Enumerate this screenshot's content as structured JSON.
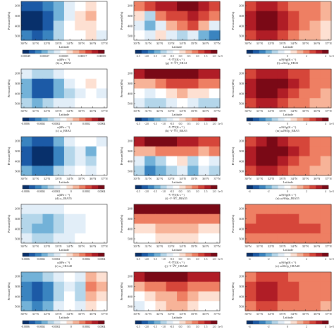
{
  "figure": {
    "columns": [
      {
        "xlabel": "Latitude",
        "ylabel": "Pressure(hPa)",
        "x_ticks": [
          "30°N",
          "31°N",
          "32°N",
          "33°N",
          "34°N",
          "35°N",
          "36°N",
          "37°N"
        ],
        "y_ticks": [
          "200",
          "300",
          "400",
          "500"
        ]
      },
      {
        "xlabel": "Latitude",
        "ylabel": "Pressure(hPa)",
        "x_ticks": [
          "30°N",
          "31°N",
          "32°N",
          "33°N",
          "34°N",
          "35°N",
          "36°N",
          "37°N"
        ],
        "y_ticks": [
          "200",
          "300",
          "400",
          "500"
        ]
      },
      {
        "xlabel": "Latitude",
        "ylabel": "Pressure(hPa)",
        "x_ticks": [
          "30°N",
          "31°N",
          "32°N",
          "33°N",
          "34°N",
          "35°N",
          "36°N",
          "37°N"
        ],
        "y_ticks": [
          "200",
          "300",
          "400",
          "500"
        ]
      }
    ],
    "rows": [
      {
        "colorbars": [
          {
            "ticks": [
              "-0.00049",
              "-0.00027",
              "-0.00005",
              "0.00017",
              "0.00039"
            ],
            "exp": "",
            "label": "ω(hPa·s⁻¹)",
            "caption": "(b) ω_ERAI"
          },
          {
            "ticks": [
              "-2.5",
              "-2.0",
              "-1.5",
              "-1.0",
              "-0.5",
              "0.0",
              "0.5",
              "1.0",
              "1.5",
              "2.0"
            ],
            "exp": "1e-5",
            "label": "-V·∇T(K·s⁻¹)",
            "caption": "(g) -V·∇T_ERAI"
          },
          {
            "ticks": [
              "-4",
              "-2",
              "0",
              "2",
              "4"
            ],
            "exp": "1e-5",
            "label": "ω∂θ/∂p(K·s⁻¹)",
            "caption": "(l) ω∂θ/∂p_ERAI"
          }
        ]
      },
      {
        "colorbars": [
          {
            "ticks": [
              "-0.0006",
              "-0.0004",
              "-0.0002",
              "0",
              "0.0002",
              "0.0004"
            ],
            "exp": "",
            "label": "ω(hPa·s⁻¹)",
            "caption": "(c) ω_ERA5"
          },
          {
            "ticks": [
              "-2.5",
              "-2.0",
              "-1.5",
              "-1.0",
              "-0.5",
              "0.0",
              "0.5",
              "1.0",
              "1.5",
              "2.0"
            ],
            "exp": "1e-5",
            "label": "-V·∇T(K·s⁻¹)",
            "caption": "(h) -V·∇T_ERA5"
          },
          {
            "ticks": [
              "-4",
              "-2",
              "0",
              "2",
              "4"
            ],
            "exp": "1e-5",
            "label": "ω∂θ/∂p(K·s⁻¹)",
            "caption": "(m) ω∂θ/∂p_ERA5"
          }
        ]
      },
      {
        "colorbars": [
          {
            "ticks": [
              "-0.0006",
              "-0.0004",
              "-0.0002",
              "0",
              "0.0002",
              "0.0004"
            ],
            "exp": "",
            "label": "ω(hPa·s⁻¹)",
            "caption": "(d) ω_JRA55"
          },
          {
            "ticks": [
              "-2.5",
              "-2.0",
              "-1.5",
              "-1.0",
              "-0.5",
              "0.0",
              "0.5",
              "1.0",
              "1.5",
              "2.0"
            ],
            "exp": "1e-5",
            "label": "-V·∇T(K·s⁻¹)",
            "caption": "(i) -V·∇T_JRA55"
          },
          {
            "ticks": [
              "-4",
              "-2",
              "0",
              "2",
              "4"
            ],
            "exp": "1e-5",
            "label": "ω∂θ/∂p(K·s⁻¹)",
            "caption": "(n) ω∂θ/∂p_JRA55"
          }
        ]
      },
      {
        "colorbars": [
          {
            "ticks": [
              "-0.0006",
              "-0.0004",
              "-0.0002",
              "0",
              "0.0002",
              "0.0004"
            ],
            "exp": "",
            "label": "ω(hPa·s⁻¹)",
            "caption": "(e) ω_CRA40"
          },
          {
            "ticks": [
              "-2.5",
              "-2.0",
              "-1.5",
              "-1.0",
              "-0.5",
              "0.0",
              "0.5",
              "1.0",
              "1.5",
              "2.0"
            ],
            "exp": "1e-5",
            "label": "-V·∇T(K·s⁻¹)",
            "caption": "(j) -V·∇T_CRA40"
          },
          {
            "ticks": [
              "-4",
              "-2",
              "0",
              "2",
              "4"
            ],
            "exp": "1e-5",
            "label": "ω∂θ/∂p(K·s⁻¹)",
            "caption": "(o) ω∂θ/∂p_CRA40"
          }
        ]
      },
      {
        "colorbars": [
          {
            "ticks": [
              "-0.0006",
              "-0.0004",
              "-0.0002",
              "0",
              "0.0002",
              "0.0004"
            ],
            "exp": "",
            "label": "",
            "caption": ""
          },
          {
            "ticks": [
              "-2.5",
              "-2.0",
              "-1.5",
              "-1.0",
              "-0.5",
              "0.0",
              "0.5",
              "1.0",
              "1.5",
              "2.0"
            ],
            "exp": "1e-5",
            "label": "",
            "caption": ""
          },
          {
            "ticks": [
              "-4",
              "-2",
              "0",
              "2",
              "4"
            ],
            "exp": "1e-5",
            "label": "",
            "caption": ""
          }
        ]
      }
    ],
    "colors": {
      "palette": [
        "#08306b",
        "#1c5aa6",
        "#3a84c0",
        "#73b2d8",
        "#b4d6ea",
        "#e2eef8",
        "#ffffff",
        "#fde0d2",
        "#f7b398",
        "#ee7f63",
        "#d6463a",
        "#b01d26",
        "#7a0916"
      ],
      "axis": "#222222",
      "text": "#222222"
    }
  },
  "chart_data": [
    {
      "type": "heatmap",
      "panel": "a",
      "column": "ω",
      "dataset": "row1",
      "pattern": [
        [
          -5,
          -5,
          -4,
          -3,
          -1,
          0,
          1,
          0
        ],
        [
          -6,
          -6,
          -5,
          -3,
          -1,
          1,
          2,
          0
        ],
        [
          -6,
          -6,
          -5,
          -2,
          0,
          1,
          1,
          0
        ],
        [
          -4,
          -5,
          -4,
          -2,
          0,
          0,
          1,
          -1
        ]
      ]
    },
    {
      "type": "heatmap",
      "panel": "f",
      "column": "-V·∇T",
      "dataset": "row1",
      "pattern": [
        [
          3,
          4,
          5,
          5,
          6,
          6,
          5,
          4
        ],
        [
          1,
          -2,
          3,
          4,
          4,
          5,
          4,
          3
        ],
        [
          -1,
          -3,
          -1,
          2,
          3,
          4,
          2,
          -1
        ],
        [
          0,
          -1,
          1,
          -1,
          -2,
          -1,
          -3,
          -4
        ]
      ]
    },
    {
      "type": "heatmap",
      "panel": "k",
      "column": "ω∂θ/∂p",
      "dataset": "row1",
      "pattern": [
        [
          4,
          5,
          5,
          4,
          3,
          3,
          3,
          2
        ],
        [
          5,
          6,
          6,
          5,
          4,
          3,
          3,
          2
        ],
        [
          5,
          6,
          6,
          5,
          4,
          3,
          2,
          1
        ],
        [
          4,
          5,
          5,
          4,
          3,
          2,
          2,
          1
        ]
      ]
    },
    {
      "type": "heatmap",
      "panel": "b",
      "column": "ω",
      "dataset": "ERAI",
      "pattern": [
        [
          -1,
          -2,
          -2,
          -1,
          0,
          0,
          0,
          0
        ],
        [
          -3,
          -5,
          -5,
          -3,
          -1,
          0,
          1,
          0
        ],
        [
          -3,
          -5,
          -5,
          -3,
          -2,
          -1,
          0,
          -1
        ],
        [
          -2,
          -3,
          -2,
          -1,
          -1,
          0,
          0,
          0
        ]
      ]
    },
    {
      "type": "heatmap",
      "panel": "g",
      "column": "-V·∇T",
      "dataset": "ERAI",
      "pattern": [
        [
          5,
          6,
          6,
          6,
          6,
          6,
          5,
          5
        ],
        [
          2,
          2,
          3,
          4,
          4,
          4,
          3,
          3
        ],
        [
          0,
          -1,
          0,
          1,
          2,
          1,
          1,
          0
        ],
        [
          -1,
          -2,
          -2,
          -1,
          0,
          -1,
          -2,
          -2
        ]
      ]
    },
    {
      "type": "heatmap",
      "panel": "l",
      "column": "ω∂θ/∂p",
      "dataset": "ERAI",
      "pattern": [
        [
          4,
          5,
          5,
          5,
          4,
          4,
          3,
          3
        ],
        [
          5,
          6,
          6,
          6,
          5,
          4,
          3,
          3
        ],
        [
          5,
          6,
          6,
          5,
          4,
          3,
          3,
          2
        ],
        [
          4,
          5,
          5,
          4,
          3,
          3,
          2,
          2
        ]
      ]
    },
    {
      "type": "heatmap",
      "panel": "c",
      "column": "ω",
      "dataset": "ERA5",
      "pattern": [
        [
          -4,
          -5,
          -5,
          -3,
          -1,
          0,
          0,
          -1
        ],
        [
          -5,
          -6,
          -6,
          -4,
          -2,
          -1,
          -3,
          0
        ],
        [
          -5,
          -6,
          -6,
          -4,
          -2,
          -1,
          -2,
          0
        ],
        [
          -3,
          -4,
          -4,
          -2,
          -1,
          0,
          -1,
          0
        ]
      ]
    },
    {
      "type": "heatmap",
      "panel": "h",
      "column": "-V·∇T",
      "dataset": "ERA5",
      "pattern": [
        [
          5,
          6,
          6,
          6,
          5,
          5,
          4,
          4
        ],
        [
          2,
          2,
          3,
          3,
          3,
          3,
          2,
          3
        ],
        [
          -1,
          -3,
          -2,
          0,
          1,
          -2,
          0,
          -1
        ],
        [
          -2,
          -4,
          -3,
          -2,
          -1,
          -3,
          -1,
          -2
        ]
      ]
    },
    {
      "type": "heatmap",
      "panel": "m",
      "column": "ω∂θ/∂p",
      "dataset": "ERA5",
      "pattern": [
        [
          4,
          5,
          6,
          5,
          4,
          4,
          3,
          3
        ],
        [
          5,
          6,
          6,
          6,
          5,
          4,
          3,
          3
        ],
        [
          5,
          6,
          6,
          5,
          4,
          3,
          3,
          2
        ],
        [
          4,
          5,
          5,
          4,
          3,
          3,
          2,
          2
        ]
      ]
    },
    {
      "type": "heatmap",
      "panel": "d",
      "column": "ω",
      "dataset": "JRA55",
      "pattern": [
        [
          -1,
          -1,
          -1,
          -1,
          0,
          0,
          0,
          0
        ],
        [
          -2,
          -2,
          -3,
          -2,
          -1,
          -1,
          0,
          0
        ],
        [
          -2,
          -3,
          -3,
          -2,
          -1,
          -1,
          0,
          0
        ],
        [
          -1,
          -2,
          -2,
          -1,
          -1,
          0,
          0,
          0
        ]
      ]
    },
    {
      "type": "heatmap",
      "panel": "i",
      "column": "-V·∇T",
      "dataset": "JRA55",
      "pattern": [
        [
          6,
          6,
          6,
          6,
          6,
          6,
          6,
          6
        ],
        [
          3,
          3,
          3,
          3,
          3,
          3,
          3,
          3
        ],
        [
          1,
          1,
          2,
          2,
          2,
          2,
          1,
          1
        ],
        [
          0,
          0,
          1,
          1,
          1,
          1,
          0,
          0
        ]
      ]
    },
    {
      "type": "heatmap",
      "panel": "n",
      "column": "ω∂θ/∂p",
      "dataset": "JRA55",
      "pattern": [
        [
          3,
          3,
          3,
          3,
          3,
          3,
          3,
          3
        ],
        [
          3,
          4,
          4,
          4,
          4,
          3,
          3,
          3
        ],
        [
          4,
          4,
          4,
          4,
          4,
          4,
          4,
          3
        ],
        [
          3,
          3,
          3,
          3,
          3,
          3,
          3,
          3
        ]
      ]
    },
    {
      "type": "heatmap",
      "panel": "e",
      "column": "ω",
      "dataset": "CRA40",
      "pattern": [
        [
          -3,
          -3,
          -2,
          -1,
          0,
          -1,
          2,
          1
        ],
        [
          -4,
          -5,
          -4,
          -2,
          -1,
          -2,
          3,
          2
        ],
        [
          -4,
          -5,
          -4,
          -2,
          0,
          -2,
          2,
          1
        ],
        [
          -3,
          -4,
          -3,
          -1,
          0,
          -1,
          1,
          0
        ]
      ]
    },
    {
      "type": "heatmap",
      "panel": "j",
      "column": "-V·∇T",
      "dataset": "CRA40",
      "pattern": [
        [
          5,
          6,
          6,
          6,
          6,
          5,
          5,
          5
        ],
        [
          2,
          3,
          3,
          4,
          4,
          3,
          3,
          3
        ],
        [
          0,
          1,
          2,
          2,
          3,
          2,
          1,
          1
        ],
        [
          -1,
          0,
          1,
          2,
          2,
          1,
          0,
          0
        ]
      ]
    },
    {
      "type": "heatmap",
      "panel": "o",
      "column": "ω∂θ/∂p",
      "dataset": "CRA40",
      "pattern": [
        [
          3,
          4,
          4,
          4,
          3,
          3,
          3,
          3
        ],
        [
          4,
          5,
          5,
          4,
          4,
          3,
          3,
          3
        ],
        [
          4,
          5,
          5,
          4,
          4,
          3,
          3,
          3
        ],
        [
          3,
          4,
          4,
          3,
          3,
          3,
          3,
          2
        ]
      ]
    }
  ]
}
